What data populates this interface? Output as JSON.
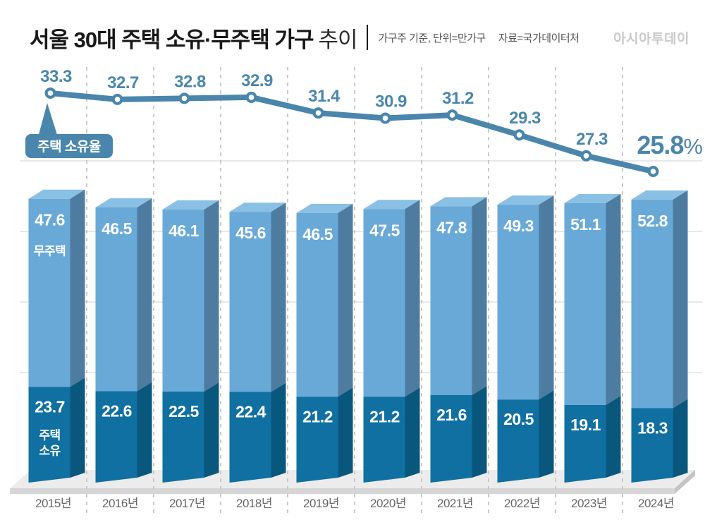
{
  "header": {
    "title_bold": "서울 30대 주택 소유·무주택 가구",
    "title_light": "추이",
    "subtitle_unit": "가구주 기준, 단위=만가구",
    "subtitle_source": "자료=국가데이터처",
    "logo": "아시아투데이"
  },
  "colors": {
    "line_blue": "#4a86ac",
    "bar_light_front": "#68a9d8",
    "bar_light_top": "#8ac0e4",
    "bar_light_side": "#4d7ca0",
    "bar_dark_front": "#1070a1",
    "bar_dark_side": "#0a577e",
    "floor_top": "#ececec",
    "floor_front": "#d5d5d5",
    "floor_end": "#c4c4c4",
    "gridline": "#e0e0e0",
    "dashline": "#c9c9c9",
    "year_text": "#666666",
    "white": "#ffffff"
  },
  "chart_data": {
    "type": "bar",
    "subtype": "stacked-3d-bars-with-line-overlay",
    "title": "서울 30대 주택 소유·무주택 가구 추이",
    "unit_note": "가구주 기준, 단위=만가구",
    "source": "자료=국가데이터처",
    "categories": [
      "2015년",
      "2016년",
      "2017년",
      "2018년",
      "2019년",
      "2020년",
      "2021년",
      "2022년",
      "2023년",
      "2024년"
    ],
    "series": [
      {
        "name": "주택 소유율",
        "type": "line",
        "unit": "%",
        "values": [
          33.3,
          32.7,
          32.8,
          32.9,
          31.4,
          30.9,
          31.2,
          29.3,
          27.3,
          25.8
        ]
      },
      {
        "name": "무주택",
        "type": "bar-upper-segment",
        "values": [
          47.6,
          46.5,
          46.1,
          45.6,
          46.5,
          47.5,
          47.8,
          49.3,
          51.1,
          52.8
        ]
      },
      {
        "name": "주택 소유",
        "type": "bar-lower-segment",
        "values": [
          23.7,
          22.6,
          22.5,
          22.4,
          21.2,
          21.2,
          21.6,
          20.5,
          19.1,
          18.3
        ]
      }
    ],
    "annotations": {
      "line_callout": "주택 소유율",
      "last_value_label": "25.8%",
      "unit_symbol": "%"
    },
    "layout_hints": {
      "grid": "horizontal + dashed vertical separators",
      "legend": "inline labels on first bar and line callout"
    }
  }
}
